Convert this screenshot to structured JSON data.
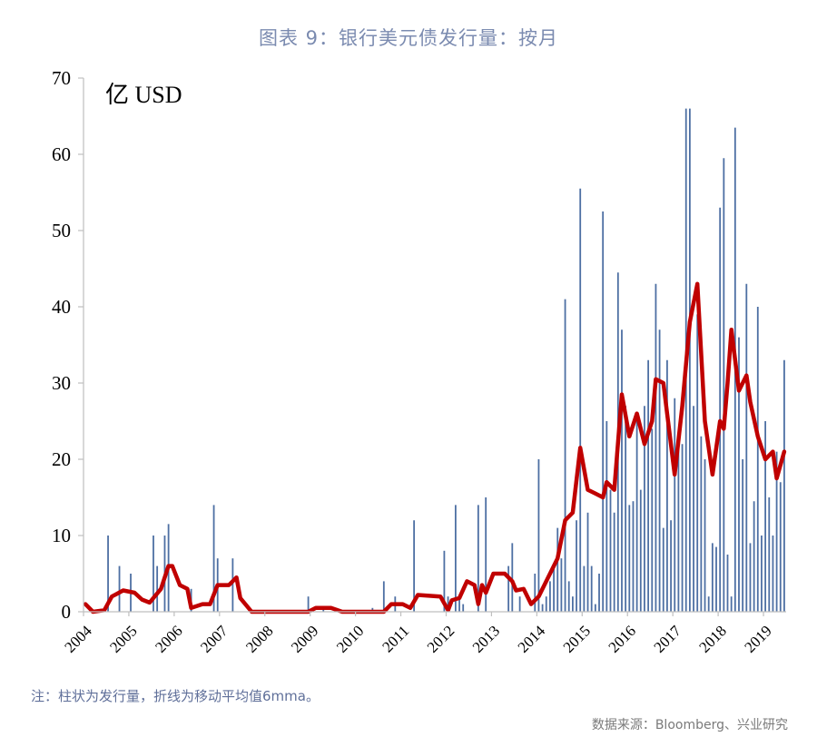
{
  "title": "图表 9：银行美元债发行量：按月",
  "note": "注：柱状为发行量，折线为移动平均值6mma。",
  "source": "数据来源：Bloomberg、兴业研究",
  "chart_data": {
    "type": "bar",
    "unit_label": "亿 USD",
    "ylim": [
      0,
      70
    ],
    "yticks": [
      0,
      10,
      20,
      30,
      40,
      50,
      60,
      70
    ],
    "xticks": [
      "2004",
      "2005",
      "2006",
      "2007",
      "2008",
      "2009",
      "2010",
      "2011",
      "2012",
      "2013",
      "2014",
      "2015",
      "2016",
      "2017",
      "2018",
      "2019"
    ],
    "x_start": "2004-01",
    "x_end": "2019-06",
    "grid": false,
    "colors": {
      "bar": "#4d6fa3",
      "line": "#c00000"
    },
    "series": [
      {
        "type": "bar",
        "points": [
          [
            "2004-07",
            10
          ],
          [
            "2004-10",
            6
          ],
          [
            "2005-01",
            5
          ],
          [
            "2005-07",
            10
          ],
          [
            "2005-08",
            6
          ],
          [
            "2005-10",
            10
          ],
          [
            "2005-11",
            11.5
          ],
          [
            "2006-05",
            3
          ],
          [
            "2006-11",
            14
          ],
          [
            "2006-12",
            7
          ],
          [
            "2007-04",
            7
          ],
          [
            "2008-12",
            2
          ],
          [
            "2009-04",
            0.5
          ],
          [
            "2010-05",
            0.5
          ],
          [
            "2010-08",
            4
          ],
          [
            "2010-11",
            2
          ],
          [
            "2011-04",
            12
          ],
          [
            "2011-12",
            8
          ],
          [
            "2012-01",
            2
          ],
          [
            "2012-03",
            14
          ],
          [
            "2012-04",
            2
          ],
          [
            "2012-05",
            1
          ],
          [
            "2012-09",
            14
          ],
          [
            "2012-11",
            15
          ],
          [
            "2013-05",
            6
          ],
          [
            "2013-06",
            9
          ],
          [
            "2013-08",
            2
          ],
          [
            "2013-12",
            5
          ],
          [
            "2014-01",
            20
          ],
          [
            "2014-02",
            1
          ],
          [
            "2014-03",
            2
          ],
          [
            "2014-04",
            4
          ],
          [
            "2014-05",
            6
          ],
          [
            "2014-06",
            11
          ],
          [
            "2014-07",
            7
          ],
          [
            "2014-08",
            41
          ],
          [
            "2014-09",
            4
          ],
          [
            "2014-10",
            2
          ],
          [
            "2014-11",
            12
          ],
          [
            "2014-12",
            55.5
          ],
          [
            "2015-01",
            6
          ],
          [
            "2015-02",
            13
          ],
          [
            "2015-03",
            6
          ],
          [
            "2015-04",
            1
          ],
          [
            "2015-05",
            5
          ],
          [
            "2015-06",
            52.5
          ],
          [
            "2015-07",
            25
          ],
          [
            "2015-08",
            16
          ],
          [
            "2015-09",
            13
          ],
          [
            "2015-10",
            44.5
          ],
          [
            "2015-11",
            37
          ],
          [
            "2015-12",
            27
          ],
          [
            "2016-01",
            14
          ],
          [
            "2016-02",
            14.5
          ],
          [
            "2016-03",
            26
          ],
          [
            "2016-04",
            16
          ],
          [
            "2016-05",
            27
          ],
          [
            "2016-06",
            33
          ],
          [
            "2016-07",
            24
          ],
          [
            "2016-08",
            43
          ],
          [
            "2016-09",
            37
          ],
          [
            "2016-10",
            11
          ],
          [
            "2016-11",
            33
          ],
          [
            "2016-12",
            12
          ],
          [
            "2017-01",
            28
          ],
          [
            "2017-02",
            23
          ],
          [
            "2017-03",
            22
          ],
          [
            "2017-04",
            66
          ],
          [
            "2017-05",
            66
          ],
          [
            "2017-06",
            27
          ],
          [
            "2017-07",
            39
          ],
          [
            "2017-08",
            23
          ],
          [
            "2017-09",
            20
          ],
          [
            "2017-10",
            2
          ],
          [
            "2017-11",
            9
          ],
          [
            "2017-12",
            8.5
          ],
          [
            "2018-01",
            53
          ],
          [
            "2018-02",
            59.5
          ],
          [
            "2018-03",
            7.5
          ],
          [
            "2018-04",
            2
          ],
          [
            "2018-05",
            63.5
          ],
          [
            "2018-06",
            36
          ],
          [
            "2018-07",
            20
          ],
          [
            "2018-08",
            43
          ],
          [
            "2018-09",
            9
          ],
          [
            "2018-10",
            14.5
          ],
          [
            "2018-11",
            40
          ],
          [
            "2018-12",
            10
          ],
          [
            "2019-01",
            25
          ],
          [
            "2019-02",
            15
          ],
          [
            "2019-03",
            10
          ],
          [
            "2019-04",
            21
          ],
          [
            "2019-05",
            17
          ],
          [
            "2019-06",
            33
          ]
        ]
      },
      {
        "type": "line",
        "name": "6mma",
        "points": [
          [
            "2004-01",
            1
          ],
          [
            "2004-03",
            0
          ],
          [
            "2004-06",
            0.2
          ],
          [
            "2004-08",
            2
          ],
          [
            "2004-11",
            2.8
          ],
          [
            "2005-02",
            2.5
          ],
          [
            "2005-04",
            1.6
          ],
          [
            "2005-06",
            1.2
          ],
          [
            "2005-09",
            3
          ],
          [
            "2005-11",
            6
          ],
          [
            "2005-12",
            6
          ],
          [
            "2006-02",
            3.5
          ],
          [
            "2006-04",
            3
          ],
          [
            "2006-05",
            0.5
          ],
          [
            "2006-08",
            1
          ],
          [
            "2006-10",
            1
          ],
          [
            "2006-12",
            3.5
          ],
          [
            "2007-03",
            3.5
          ],
          [
            "2007-05",
            4.5
          ],
          [
            "2007-06",
            1.8
          ],
          [
            "2007-09",
            0
          ],
          [
            "2008-12",
            0
          ],
          [
            "2009-02",
            0.5
          ],
          [
            "2009-06",
            0.5
          ],
          [
            "2009-09",
            0
          ],
          [
            "2010-08",
            0
          ],
          [
            "2010-10",
            1
          ],
          [
            "2011-01",
            1
          ],
          [
            "2011-03",
            0.5
          ],
          [
            "2011-05",
            2.2
          ],
          [
            "2011-11",
            2
          ],
          [
            "2012-01",
            0.2
          ],
          [
            "2012-02",
            1.5
          ],
          [
            "2012-04",
            1.8
          ],
          [
            "2012-06",
            4
          ],
          [
            "2012-08",
            3.5
          ],
          [
            "2012-09",
            1
          ],
          [
            "2012-10",
            3.5
          ],
          [
            "2012-11",
            2.5
          ],
          [
            "2013-01",
            5
          ],
          [
            "2013-04",
            5
          ],
          [
            "2013-06",
            4
          ],
          [
            "2013-07",
            2.8
          ],
          [
            "2013-09",
            3
          ],
          [
            "2013-11",
            1
          ],
          [
            "2014-01",
            2
          ],
          [
            "2014-04",
            5
          ],
          [
            "2014-06",
            7
          ],
          [
            "2014-08",
            12
          ],
          [
            "2014-10",
            13
          ],
          [
            "2014-12",
            21.5
          ],
          [
            "2015-02",
            16
          ],
          [
            "2015-04",
            15.5
          ],
          [
            "2015-06",
            15
          ],
          [
            "2015-07",
            17
          ],
          [
            "2015-09",
            16
          ],
          [
            "2015-11",
            28.5
          ],
          [
            "2016-01",
            23
          ],
          [
            "2016-03",
            26
          ],
          [
            "2016-05",
            22
          ],
          [
            "2016-07",
            25
          ],
          [
            "2016-08",
            30.5
          ],
          [
            "2016-10",
            30
          ],
          [
            "2016-11",
            26
          ],
          [
            "2017-01",
            18
          ],
          [
            "2017-03",
            27
          ],
          [
            "2017-05",
            38
          ],
          [
            "2017-07",
            43
          ],
          [
            "2017-09",
            25
          ],
          [
            "2017-11",
            18
          ],
          [
            "2018-01",
            25
          ],
          [
            "2018-02",
            24
          ],
          [
            "2018-03",
            30
          ],
          [
            "2018-04",
            37
          ],
          [
            "2018-06",
            29
          ],
          [
            "2018-08",
            31
          ],
          [
            "2018-09",
            27.5
          ],
          [
            "2018-11",
            23
          ],
          [
            "2019-01",
            20
          ],
          [
            "2019-03",
            21
          ],
          [
            "2019-04",
            17.5
          ],
          [
            "2019-06",
            21
          ]
        ]
      }
    ]
  }
}
